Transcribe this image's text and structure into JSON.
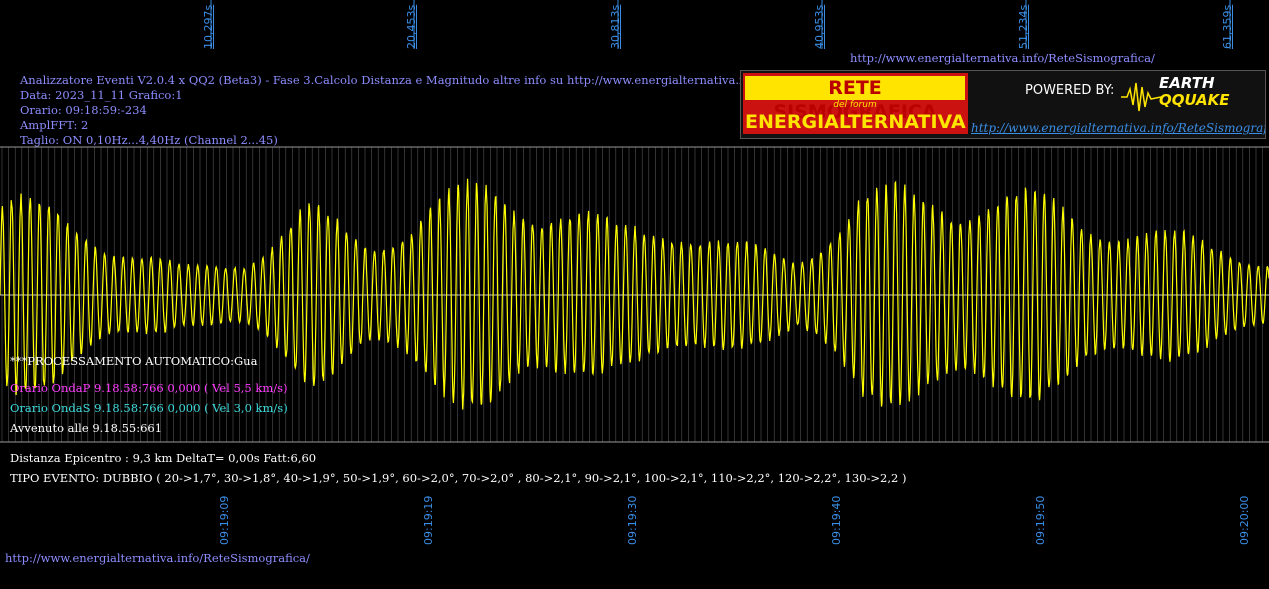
{
  "header": {
    "info_lines": [
      "Analizzatore Eventi V2.0.4 x QQ2 (Beta3) - Fase 3.Calcolo Distanza e Magnitudo altre info su http://www.energialternativa.info/ReteSism",
      "Data: 2023_11_11 Grafico:1",
      "Orario: 09:18:59:-234",
      "AmplFFT: 2",
      "Taglio: ON 0,10Hz...4,40Hz       (Channel 2...45)"
    ],
    "top_url": "http://www.energialternativa.info/ReteSismografica/"
  },
  "logo": {
    "line1": "RETE SISMOGRAFICA",
    "line2": "del forum",
    "line3": "ENERGIALTERNATIVA",
    "powered": "POWERED BY:",
    "brand1": "EARTH",
    "brand2": "QQUAKE",
    "url": "http://www.energialternativa.info/ReteSismografica"
  },
  "messages": {
    "auto": "***PROCESSAMENTO AUTOMATICO:Gua",
    "onda_p": "Orario OndaP 9.18.58:766  0,000 ( Vel 5,5 km/s)",
    "onda_s": "Orario OndaS 9.18.58:766  0,000 ( Vel 3,0 km/s)",
    "avvenuto": "Avvenuto alle 9.18.55:661",
    "distanza": "Distanza Epicentro : 9,3 km DeltaT= 0,00s  Fatt:6,60",
    "tipo": "TIPO EVENTO: DUBBIO ( 20->1,7°, 30->1,8°, 40->1,9°, 50->1,9°, 60->2,0°, 70->2,0° , 80->2,1°, 90->2,1°, 100->2,1°, 110->2,2°, 120->2,2°, 130->2,2 )"
  },
  "footer_url": "http://www.energialternativa.info/ReteSismografica/",
  "colors": {
    "signal": "#ffff00",
    "grid": "#9a9a9a",
    "baseline": "#c8c8c8",
    "axis_text": "#3a8ee6",
    "info_text": "#8d8dff",
    "onda_p": "#ff3cff",
    "onda_s": "#3cdcdc"
  },
  "chart_data": {
    "type": "line",
    "title": "",
    "top_axis_ticks": [
      "10,297s",
      "20,453s",
      "30,813s",
      "40,953s",
      "51,234s",
      "61,359s"
    ],
    "bottom_axis_ticks": [
      "09:19:09",
      "09:19:19",
      "09:19:30",
      "09:19:40",
      "09:19:50",
      "09:20:00"
    ],
    "envelope_times_s": [
      0,
      3,
      6,
      9,
      12,
      15,
      18,
      21,
      24,
      27,
      30,
      33,
      36,
      39,
      42,
      45,
      48,
      51,
      54,
      57,
      60,
      62
    ],
    "envelope_amplitude": [
      0.9,
      0.75,
      0.45,
      0.25,
      0.35,
      0.8,
      0.5,
      0.85,
      1.0,
      0.9,
      0.6,
      0.7,
      0.45,
      0.35,
      0.95,
      0.9,
      1.0,
      0.85,
      0.7,
      0.55,
      0.45,
      0.35
    ],
    "carrier_frequency_hz": 2.2,
    "grid": true
  }
}
